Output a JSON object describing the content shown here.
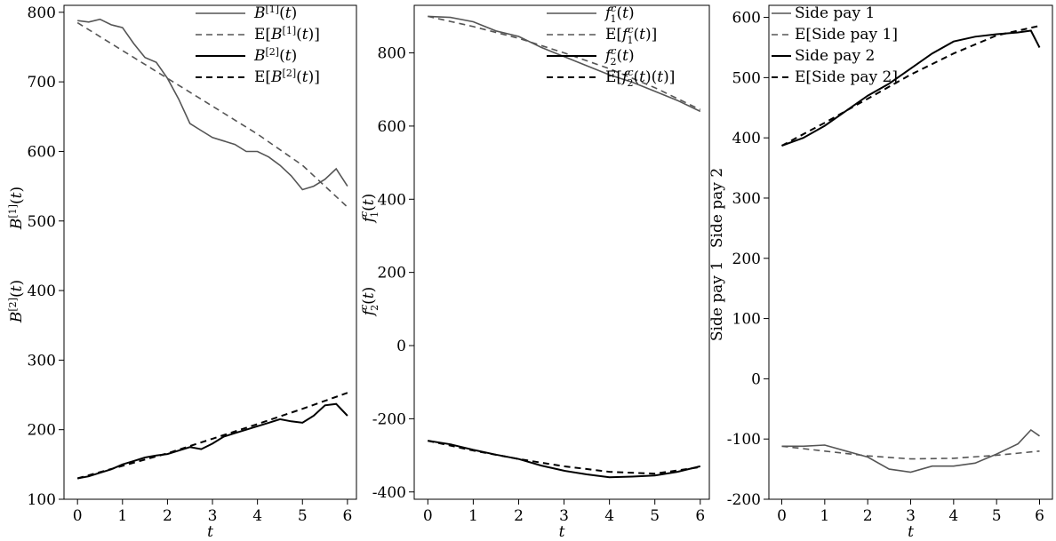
{
  "chart_data": [
    {
      "type": "line",
      "xlabel": "t",
      "ylabel_top": "B[1](t)",
      "ylabel_bottom": "B[2](t)",
      "xlim": [
        -0.3,
        6.2
      ],
      "ylim": [
        100,
        810
      ],
      "xticks": [
        "0",
        "1",
        "2",
        "3",
        "4",
        "5",
        "6"
      ],
      "yticks": [
        "100",
        "200",
        "300",
        "400",
        "500",
        "600",
        "700",
        "800"
      ],
      "legend_position": "top-right",
      "series": [
        {
          "name": "B[1](t)",
          "style": "solid",
          "color": "#555555",
          "x": [
            0,
            0.25,
            0.5,
            0.75,
            1.0,
            1.25,
            1.5,
            1.75,
            2.0,
            2.25,
            2.5,
            2.75,
            3.0,
            3.25,
            3.5,
            3.75,
            4.0,
            4.25,
            4.5,
            4.75,
            5.0,
            5.25,
            5.5,
            5.75,
            6.0
          ],
          "y": [
            788,
            786,
            790,
            782,
            778,
            755,
            735,
            728,
            705,
            675,
            640,
            630,
            620,
            615,
            610,
            600,
            600,
            592,
            580,
            565,
            545,
            550,
            560,
            575,
            550
          ]
        },
        {
          "name": "E[B[1](t)]",
          "style": "dashed",
          "color": "#555555",
          "x": [
            0,
            1,
            2,
            3,
            4,
            5,
            6
          ],
          "y": [
            785,
            745,
            705,
            665,
            625,
            580,
            520
          ]
        },
        {
          "name": "B[2](t)",
          "style": "solid",
          "color": "#000000",
          "x": [
            0,
            0.25,
            0.5,
            0.75,
            1.0,
            1.25,
            1.5,
            1.75,
            2.0,
            2.25,
            2.5,
            2.75,
            3.0,
            3.25,
            3.5,
            3.75,
            4.0,
            4.25,
            4.5,
            4.75,
            5.0,
            5.25,
            5.5,
            5.75,
            6.0
          ],
          "y": [
            130,
            133,
            138,
            143,
            150,
            155,
            160,
            163,
            165,
            170,
            175,
            172,
            180,
            190,
            195,
            200,
            205,
            210,
            215,
            212,
            210,
            220,
            235,
            237,
            220
          ]
        },
        {
          "name": "E[B[2](t)]",
          "style": "dashed",
          "color": "#000000",
          "x": [
            0,
            1,
            2,
            3,
            4,
            5,
            6
          ],
          "y": [
            130,
            148,
            166,
            187,
            208,
            230,
            253
          ]
        }
      ]
    },
    {
      "type": "line",
      "xlabel": "t",
      "ylabel_top": "f1c(t)",
      "ylabel_bottom": "f2c(t)",
      "xlim": [
        -0.3,
        6.2
      ],
      "ylim": [
        -420,
        930
      ],
      "xticks": [
        "0",
        "1",
        "2",
        "3",
        "4",
        "5",
        "6"
      ],
      "yticks": [
        "-400",
        "-200",
        "0",
        "200",
        "400",
        "600",
        "800"
      ],
      "legend_position": "top-right",
      "series": [
        {
          "name": "f1c(t)",
          "style": "solid",
          "color": "#555555",
          "x": [
            0,
            0.5,
            1.0,
            1.5,
            2.0,
            2.5,
            3.0,
            3.5,
            4.0,
            4.5,
            5.0,
            5.5,
            6.0
          ],
          "y": [
            900,
            897,
            885,
            860,
            845,
            815,
            790,
            765,
            740,
            720,
            695,
            670,
            640
          ]
        },
        {
          "name": "E[f1c(t)]",
          "style": "dashed",
          "color": "#555555",
          "x": [
            0,
            1,
            2,
            3,
            4,
            5,
            6
          ],
          "y": [
            900,
            872,
            840,
            800,
            757,
            705,
            645
          ]
        },
        {
          "name": "f2c(t)",
          "style": "solid",
          "color": "#000000",
          "x": [
            0,
            0.5,
            1.0,
            1.5,
            2.0,
            2.5,
            3.0,
            3.5,
            4.0,
            4.5,
            5.0,
            5.5,
            6.0
          ],
          "y": [
            -260,
            -270,
            -285,
            -298,
            -310,
            -328,
            -342,
            -352,
            -360,
            -358,
            -355,
            -345,
            -330
          ]
        },
        {
          "name": "E[f2c(t)(t)]",
          "style": "dashed",
          "color": "#000000",
          "x": [
            0,
            1,
            2,
            3,
            4,
            5,
            6
          ],
          "y": [
            -260,
            -287,
            -310,
            -330,
            -345,
            -350,
            -332
          ]
        }
      ]
    },
    {
      "type": "line",
      "xlabel": "t",
      "ylabel_top": "Side pay 2",
      "ylabel_bottom": "Side pay 1",
      "xlim": [
        -0.3,
        6.3
      ],
      "ylim": [
        -200,
        620
      ],
      "xticks": [
        "0",
        "1",
        "2",
        "3",
        "4",
        "5",
        "6"
      ],
      "yticks": [
        "-200",
        "-100",
        "0",
        "100",
        "200",
        "300",
        "400",
        "500",
        "600"
      ],
      "legend_position": "top-left",
      "series": [
        {
          "name": "Side pay 1",
          "style": "solid",
          "color": "#555555",
          "x": [
            0,
            0.5,
            1.0,
            1.5,
            2.0,
            2.5,
            3.0,
            3.5,
            4.0,
            4.5,
            5.0,
            5.5,
            5.8,
            6.0
          ],
          "y": [
            -112,
            -112,
            -110,
            -120,
            -130,
            -150,
            -155,
            -145,
            -145,
            -140,
            -125,
            -108,
            -85,
            -95
          ]
        },
        {
          "name": "E[Side pay 1]",
          "style": "dashed",
          "color": "#555555",
          "x": [
            0,
            1,
            2,
            3,
            4,
            5,
            6
          ],
          "y": [
            -112,
            -120,
            -128,
            -133,
            -132,
            -127,
            -120
          ]
        },
        {
          "name": "Side pay 2",
          "style": "solid",
          "color": "#000000",
          "x": [
            0,
            0.5,
            1.0,
            1.5,
            2.0,
            2.5,
            3.0,
            3.5,
            4.0,
            4.5,
            5.0,
            5.5,
            5.8,
            6.0
          ],
          "y": [
            387,
            400,
            420,
            445,
            470,
            490,
            515,
            540,
            560,
            568,
            572,
            575,
            578,
            550
          ]
        },
        {
          "name": "E[Side pay 2]",
          "style": "dashed",
          "color": "#000000",
          "x": [
            0,
            1,
            2,
            3,
            4,
            5,
            6
          ],
          "y": [
            387,
            425,
            465,
            505,
            540,
            570,
            586
          ]
        }
      ]
    }
  ]
}
